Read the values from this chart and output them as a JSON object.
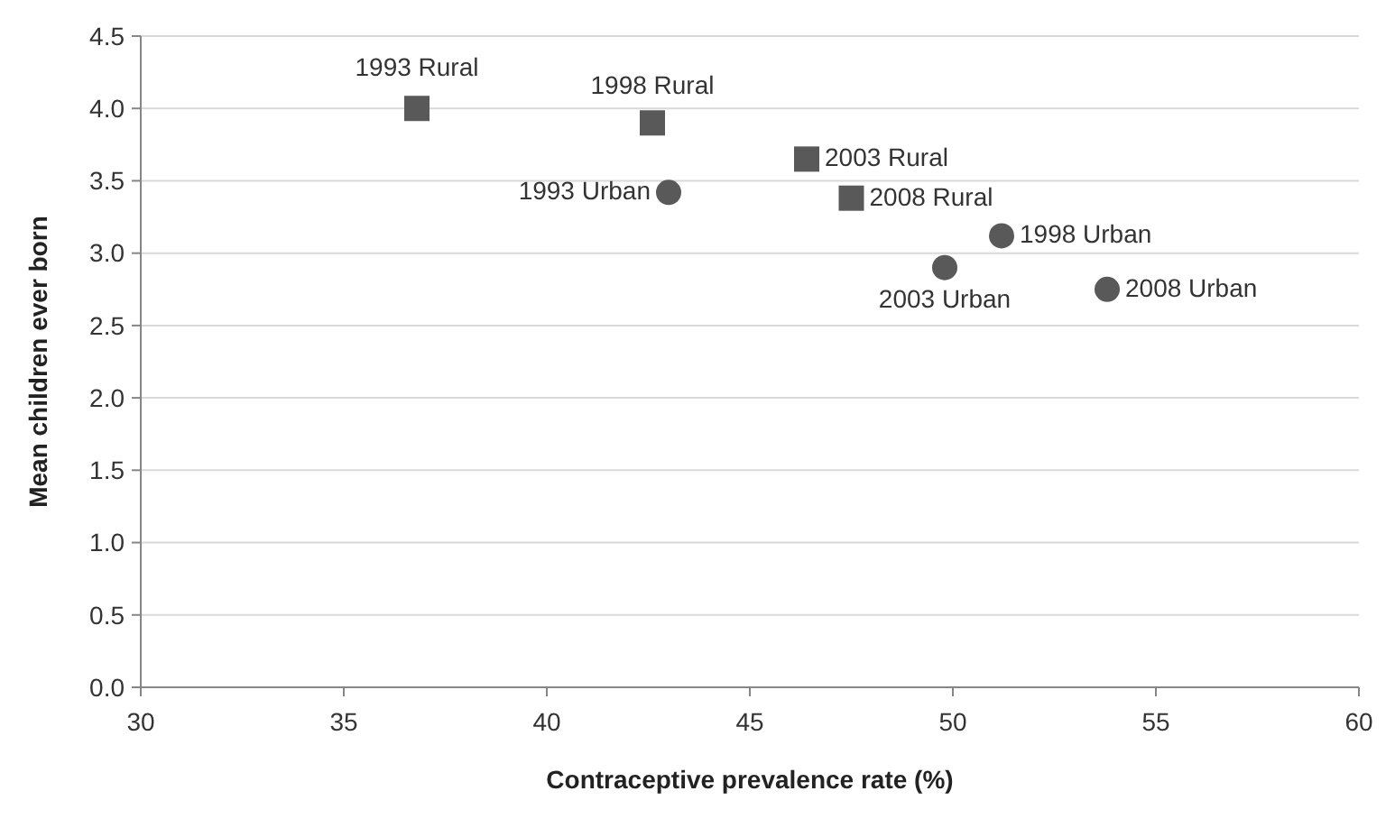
{
  "chart_data": {
    "type": "scatter",
    "xlabel": "Contraceptive prevalence rate (%)",
    "ylabel": "Mean children ever born",
    "xlim": [
      30,
      60
    ],
    "xticks": [
      30,
      35,
      40,
      45,
      50,
      55,
      60
    ],
    "ylim": [
      0,
      4.5
    ],
    "yticks": [
      {
        "value": 0,
        "label": "0.0"
      },
      {
        "value": 0.5,
        "label": "0.5"
      },
      {
        "value": 1,
        "label": "1.0"
      },
      {
        "value": 1.5,
        "label": "1.5"
      },
      {
        "value": 2,
        "label": "2.0"
      },
      {
        "value": 2.5,
        "label": "2.5"
      },
      {
        "value": 3,
        "label": "3.0"
      },
      {
        "value": 3.5,
        "label": "3.5"
      },
      {
        "value": 4,
        "label": "4.0"
      },
      {
        "value": 4.5,
        "label": "4.5"
      }
    ],
    "grid": "y",
    "series": [
      {
        "color": "#595959",
        "marker": "square",
        "x": [
          36.8,
          42.6,
          46.4,
          47.5
        ],
        "values": [
          4.0,
          3.9,
          3.65,
          3.38
        ]
      },
      {
        "color": "#595959",
        "marker": "circle",
        "x": [
          43.0,
          51.2,
          49.8,
          53.8
        ],
        "values": [
          3.42,
          3.12,
          2.9,
          2.75
        ]
      }
    ],
    "annotations": [
      {
        "text": "1993 Rural",
        "x": 36.8,
        "y": 4.0
      },
      {
        "text": "1998 Rural",
        "x": 42.6,
        "y": 3.9
      },
      {
        "text": "2003 Rural",
        "x": 46.4,
        "y": 3.65
      },
      {
        "text": "2008 Rural",
        "x": 47.5,
        "y": 3.38
      },
      {
        "text": "1993 Urban",
        "x": 43.0,
        "y": 3.42
      },
      {
        "text": "1998 Urban",
        "x": 51.2,
        "y": 3.12
      },
      {
        "text": "2003 Urban",
        "x": 49.8,
        "y": 2.9
      },
      {
        "text": "2008 Urban",
        "x": 53.8,
        "y": 2.75
      }
    ]
  }
}
